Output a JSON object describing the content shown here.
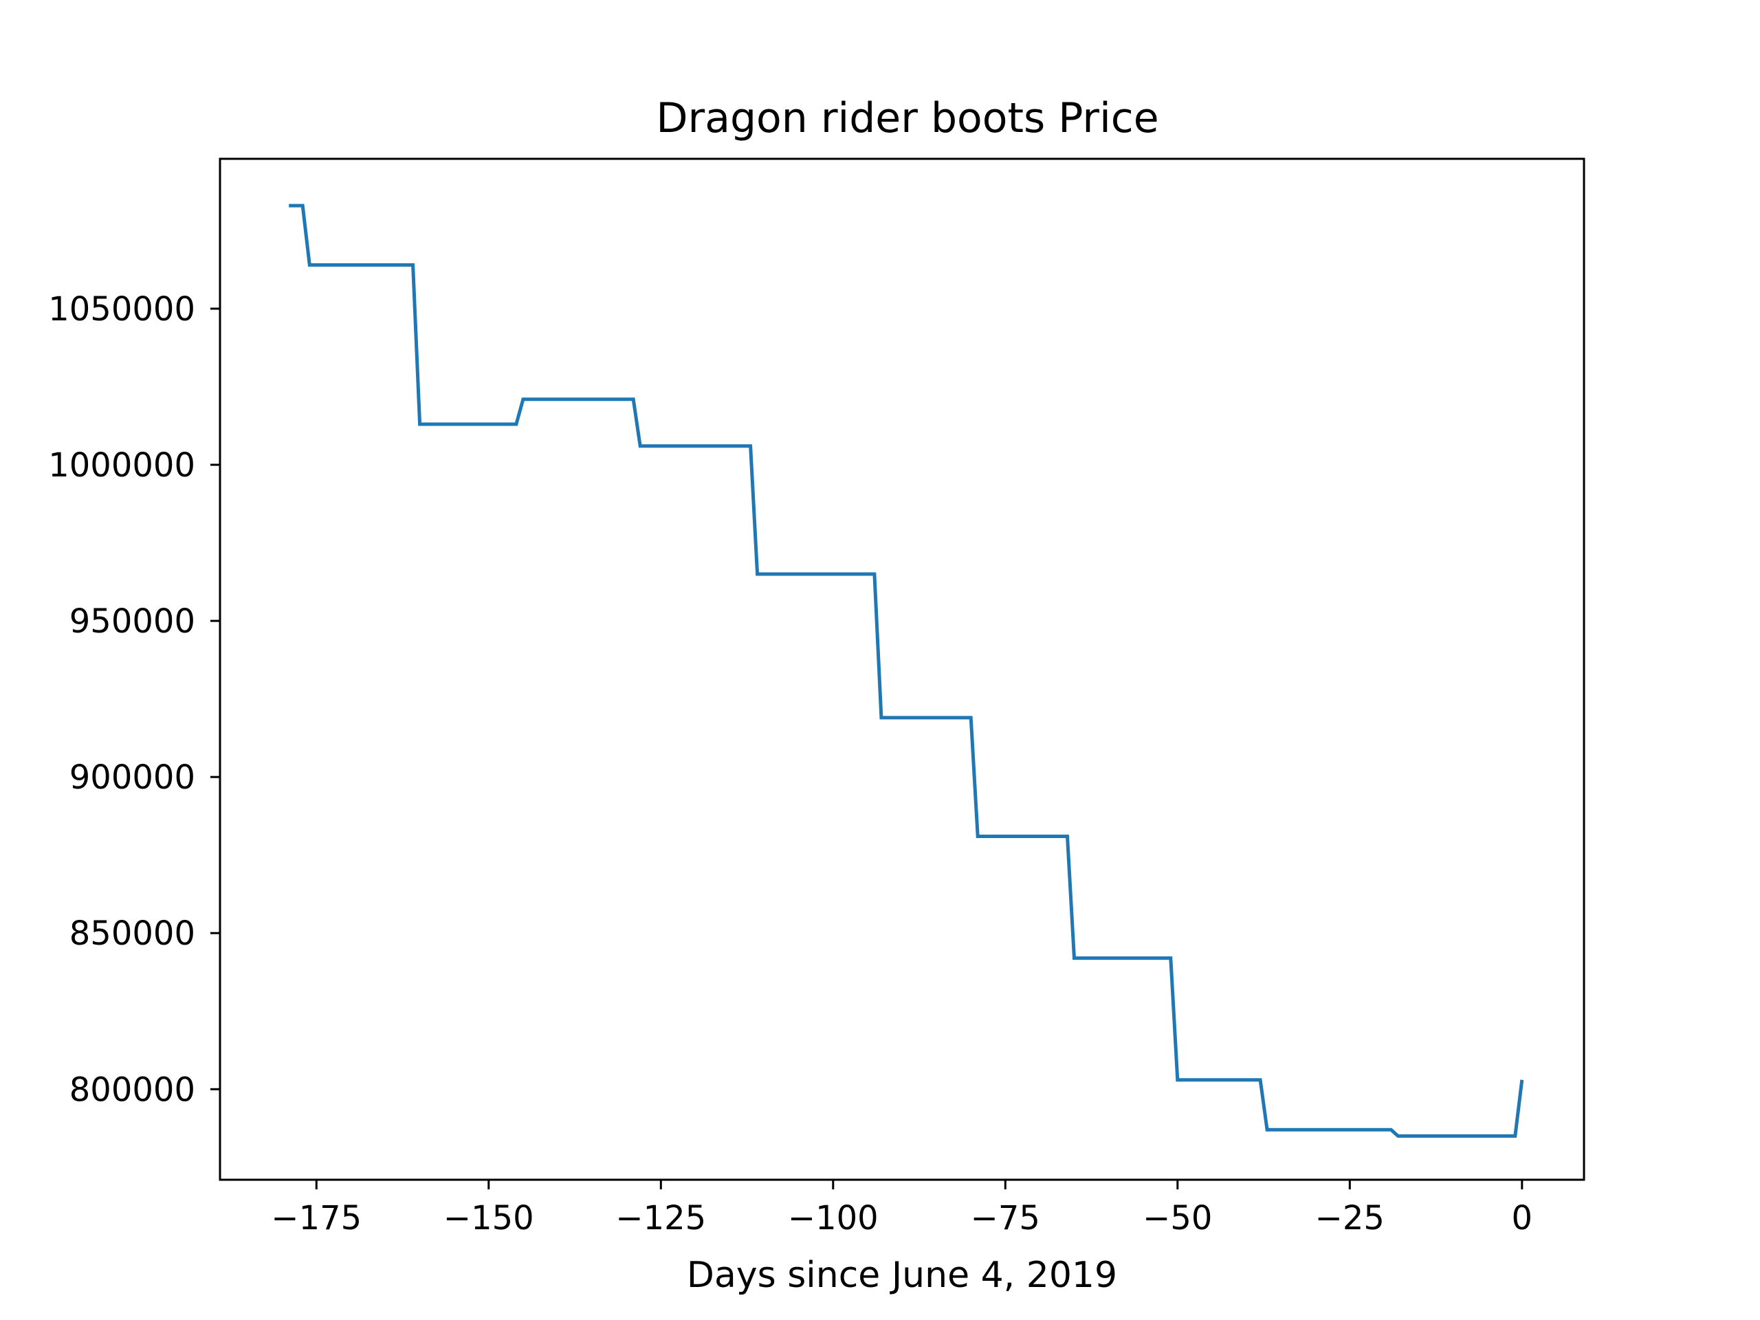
{
  "chart_data": {
    "type": "line",
    "title": "Dragon rider boots Price",
    "xlabel": "Days since June 4, 2019",
    "ylabel": "",
    "xlim": [
      -189,
      9
    ],
    "ylim": [
      771000,
      1098000
    ],
    "x_ticks": [
      -175,
      -150,
      -125,
      -100,
      -75,
      -50,
      -25,
      0
    ],
    "x_tick_labels": [
      "−175",
      "−150",
      "−125",
      "−100",
      "−75",
      "−50",
      "−25",
      "0"
    ],
    "y_ticks": [
      800000,
      850000,
      900000,
      950000,
      1000000,
      1050000
    ],
    "y_tick_labels": [
      "800000",
      "850000",
      "900000",
      "950000",
      "1000000",
      "1050000"
    ],
    "grid": false,
    "series": [
      {
        "color": "#1f77b4",
        "x": [
          -179,
          -178,
          -177,
          -176,
          -161,
          -160,
          -146,
          -145,
          -129,
          -128,
          -112,
          -111,
          -94,
          -93,
          -80,
          -79,
          -66,
          -65,
          -51,
          -50,
          -38,
          -37,
          -19,
          -18,
          -1,
          0
        ],
        "y": [
          1083000,
          1083000,
          1083000,
          1064000,
          1064000,
          1013000,
          1013000,
          1021000,
          1021000,
          1006000,
          1006000,
          965000,
          965000,
          919000,
          919000,
          881000,
          881000,
          842000,
          842000,
          803000,
          803000,
          787000,
          787000,
          785000,
          785000,
          803000
        ]
      }
    ]
  }
}
